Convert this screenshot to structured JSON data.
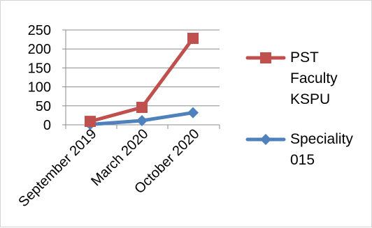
{
  "chart_data": {
    "type": "line",
    "categories": [
      "September 2019",
      "March 2020",
      "October 2020"
    ],
    "series": [
      {
        "name": "PST Faculty KSPU",
        "values": [
          9,
          46,
          228
        ],
        "color": "#c0504d",
        "marker": "square"
      },
      {
        "name": "Speciality 015",
        "values": [
          1,
          11,
          32
        ],
        "color": "#4f81bd",
        "marker": "diamond"
      }
    ],
    "ylim": [
      0,
      250
    ],
    "yticks": [
      0,
      50,
      100,
      150,
      200,
      250
    ],
    "grid": true,
    "legend": "right",
    "title": "",
    "xlabel": "",
    "ylabel": ""
  },
  "legend": {
    "items": [
      {
        "lines": [
          "PST",
          "Faculty",
          "KSPU"
        ]
      },
      {
        "lines": [
          "Speciality",
          "015"
        ]
      }
    ]
  }
}
